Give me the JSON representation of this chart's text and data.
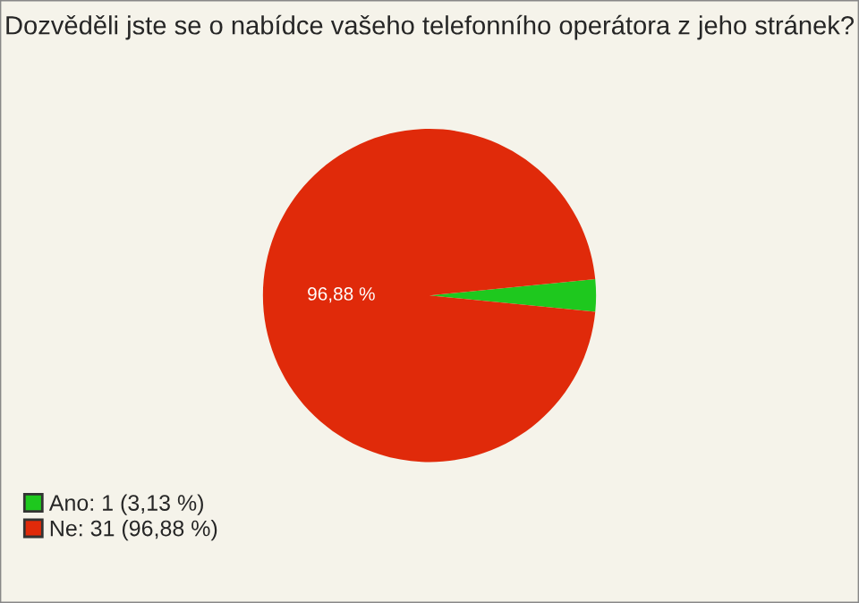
{
  "chart_data": {
    "type": "pie",
    "title": "Dozvěděli jste se o nabídce vašeho telefonního operátora z jeho stránek?",
    "categories": [
      "Ano: 1 (3,13 %)",
      "Ne: 31 (96,88 %)"
    ],
    "values": [
      3.13,
      96.88
    ],
    "colors": [
      "#1ec81e",
      "#e02a0a"
    ],
    "value_labels": [
      null,
      "96,88 %"
    ],
    "legend": "bottom left"
  }
}
